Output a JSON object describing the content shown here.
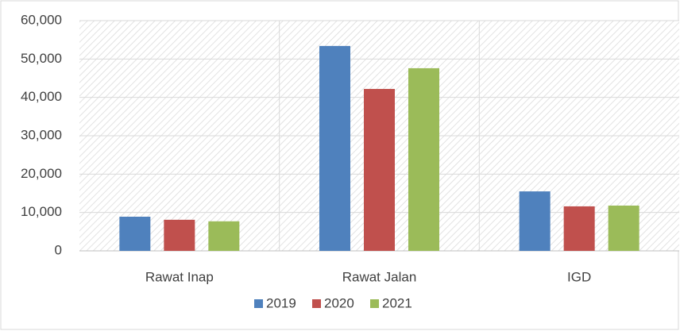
{
  "chart_data": {
    "type": "bar",
    "categories": [
      "Rawat Inap",
      "Rawat Jalan",
      "IGD"
    ],
    "series": [
      {
        "name": "2019",
        "color": "#4f81bd",
        "values": [
          8900,
          53400,
          15500
        ]
      },
      {
        "name": "2020",
        "color": "#c0504d",
        "values": [
          8100,
          42200,
          11600
        ]
      },
      {
        "name": "2021",
        "color": "#9bbb59",
        "values": [
          7700,
          47600,
          11800
        ]
      }
    ],
    "ylim": [
      0,
      60000
    ],
    "yticks": [
      0,
      {
        "value": 10000,
        "label": "10,000"
      },
      {
        "value": 20000,
        "label": "20,000"
      },
      {
        "value": 30000,
        "label": "30,000"
      },
      {
        "value": 40000,
        "label": "40,000"
      },
      {
        "value": 50000,
        "label": "50,000"
      },
      {
        "value": 60000,
        "label": "60,000"
      }
    ],
    "grid": true,
    "legend": "bottom"
  }
}
